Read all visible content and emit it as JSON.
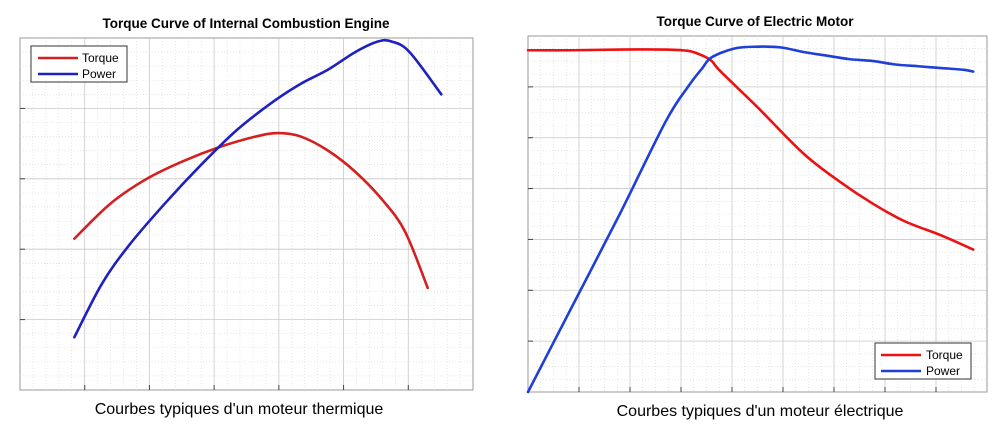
{
  "chart_data": [
    {
      "type": "line",
      "title": "Torque Curve of Internal Combustion Engine",
      "caption": "Courbes typiques d'un moteur thermique",
      "xlabel": "",
      "ylabel": "",
      "grid": true,
      "legend_placement": "top-left",
      "xlim": [
        0,
        1
      ],
      "ylim": [
        0,
        1
      ],
      "series": [
        {
          "name": "Torque",
          "color": "#d42020",
          "x": [
            0.12,
            0.2,
            0.28,
            0.36,
            0.44,
            0.52,
            0.57,
            0.62,
            0.68,
            0.74,
            0.8,
            0.85,
            0.9
          ],
          "y": [
            0.43,
            0.53,
            0.6,
            0.65,
            0.69,
            0.72,
            0.73,
            0.72,
            0.68,
            0.62,
            0.54,
            0.45,
            0.29
          ]
        },
        {
          "name": "Power",
          "color": "#1f20c0",
          "x": [
            0.12,
            0.18,
            0.24,
            0.32,
            0.4,
            0.48,
            0.56,
            0.62,
            0.68,
            0.74,
            0.79,
            0.82,
            0.86,
            0.93
          ],
          "y": [
            0.15,
            0.3,
            0.41,
            0.53,
            0.64,
            0.74,
            0.82,
            0.87,
            0.91,
            0.96,
            0.99,
            0.99,
            0.96,
            0.84
          ]
        }
      ]
    },
    {
      "type": "line",
      "title": "Torque Curve of Electric Motor",
      "caption": "Courbes typiques d'un moteur électrique",
      "xlabel": "",
      "ylabel": "",
      "grid": true,
      "legend_placement": "bottom-right",
      "xlim": [
        0,
        1
      ],
      "ylim": [
        0,
        1
      ],
      "series": [
        {
          "name": "Torque",
          "color": "#ee1111",
          "x": [
            0.0,
            0.1,
            0.2,
            0.3,
            0.35,
            0.38,
            0.4,
            0.42,
            0.5,
            0.6,
            0.68,
            0.75,
            0.82,
            0.9,
            0.97
          ],
          "y": [
            0.96,
            0.96,
            0.962,
            0.962,
            0.958,
            0.945,
            0.93,
            0.9,
            0.8,
            0.67,
            0.59,
            0.53,
            0.48,
            0.44,
            0.4
          ]
        },
        {
          "name": "Power",
          "color": "#1f3fd8",
          "x": [
            0.0,
            0.1,
            0.2,
            0.3,
            0.35,
            0.38,
            0.4,
            0.45,
            0.5,
            0.55,
            0.6,
            0.65,
            0.7,
            0.75,
            0.8,
            0.85,
            0.9,
            0.95,
            0.97
          ],
          "y": [
            0.0,
            0.25,
            0.5,
            0.76,
            0.86,
            0.91,
            0.94,
            0.965,
            0.97,
            0.968,
            0.955,
            0.945,
            0.935,
            0.93,
            0.92,
            0.915,
            0.91,
            0.905,
            0.9
          ]
        }
      ]
    }
  ]
}
